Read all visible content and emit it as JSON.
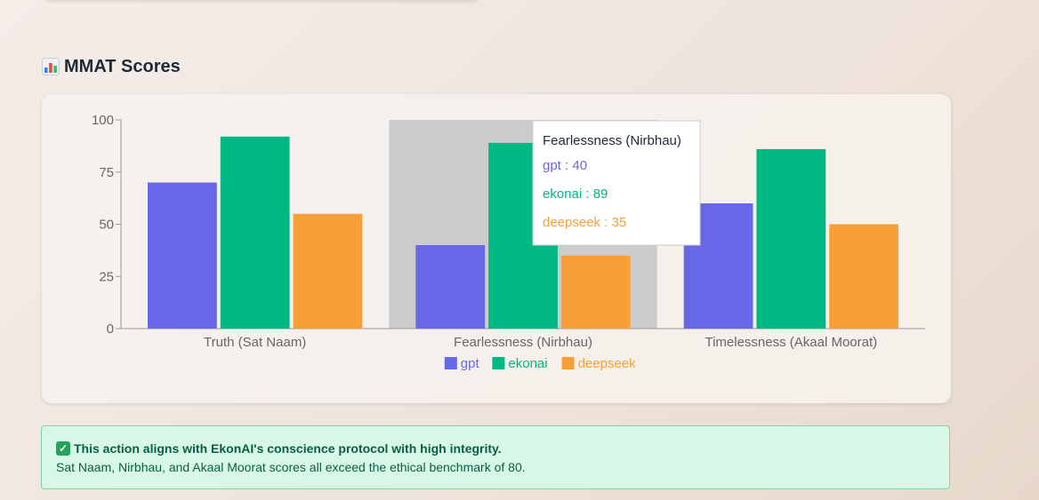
{
  "section": {
    "icon": "bar-chart-icon",
    "title": "MMAT Scores"
  },
  "chart_data": {
    "type": "bar",
    "categories": [
      "Truth (Sat Naam)",
      "Fearlessness (Nirbhau)",
      "Timelessness (Akaal Moorat)"
    ],
    "series": [
      {
        "name": "gpt",
        "color": "#6767e8",
        "values": [
          70,
          40,
          60
        ]
      },
      {
        "name": "ekonai",
        "color": "#00b884",
        "values": [
          92,
          89,
          86
        ]
      },
      {
        "name": "deepseek",
        "color": "#f99f37",
        "values": [
          55,
          35,
          50
        ]
      }
    ],
    "ylim": [
      0,
      100
    ],
    "yticks": [
      0,
      25,
      50,
      75,
      100
    ],
    "xlabel": "",
    "ylabel": "",
    "legend": "bottom",
    "highlighted_category": "Fearlessness (Nirbhau)",
    "tooltip": {
      "title": "Fearlessness (Nirbhau)",
      "items": [
        {
          "label": "gpt : 40",
          "color": "#6767e8"
        },
        {
          "label": "ekonai : 89",
          "color": "#00b884"
        },
        {
          "label": "deepseek : 35",
          "color": "#f99f37"
        }
      ]
    }
  },
  "alert": {
    "icon": "check-icon",
    "icon_glyph": "✓",
    "headline": "This action aligns with EkonAI's conscience protocol with high integrity.",
    "body": "Sat Naam, Nirbhau, and Akaal Moorat scores all exceed the ethical benchmark of 80."
  }
}
